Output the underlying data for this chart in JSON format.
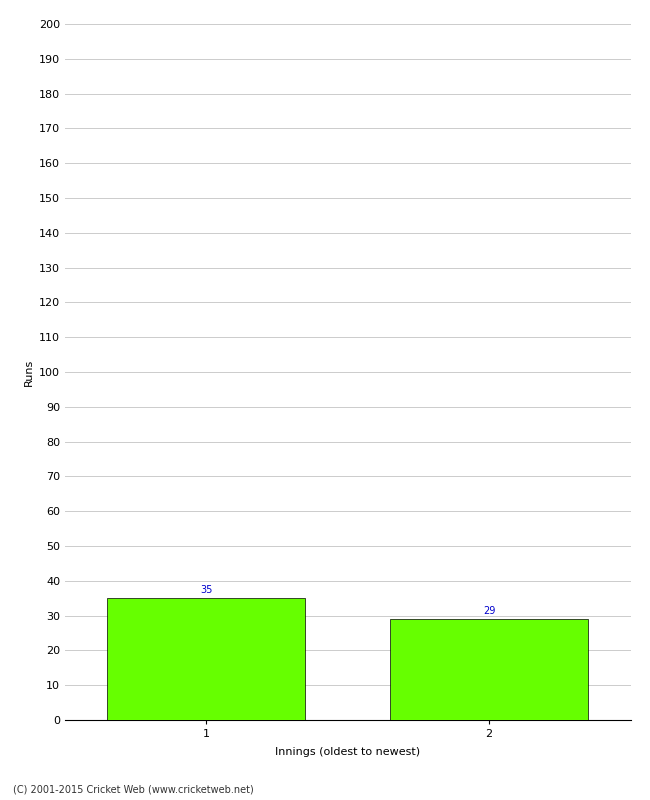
{
  "categories": [
    "1",
    "2"
  ],
  "values": [
    35,
    29
  ],
  "bar_color": "#66ff00",
  "bar_edge_color": "#000000",
  "ylabel": "Runs",
  "xlabel": "Innings (oldest to newest)",
  "ylim": [
    0,
    200
  ],
  "yticks": [
    0,
    10,
    20,
    30,
    40,
    50,
    60,
    70,
    80,
    90,
    100,
    110,
    120,
    130,
    140,
    150,
    160,
    170,
    180,
    190,
    200
  ],
  "label_color": "#0000cc",
  "label_fontsize": 7,
  "footnote": "(C) 2001-2015 Cricket Web (www.cricketweb.net)",
  "background_color": "#ffffff",
  "grid_color": "#cccccc"
}
